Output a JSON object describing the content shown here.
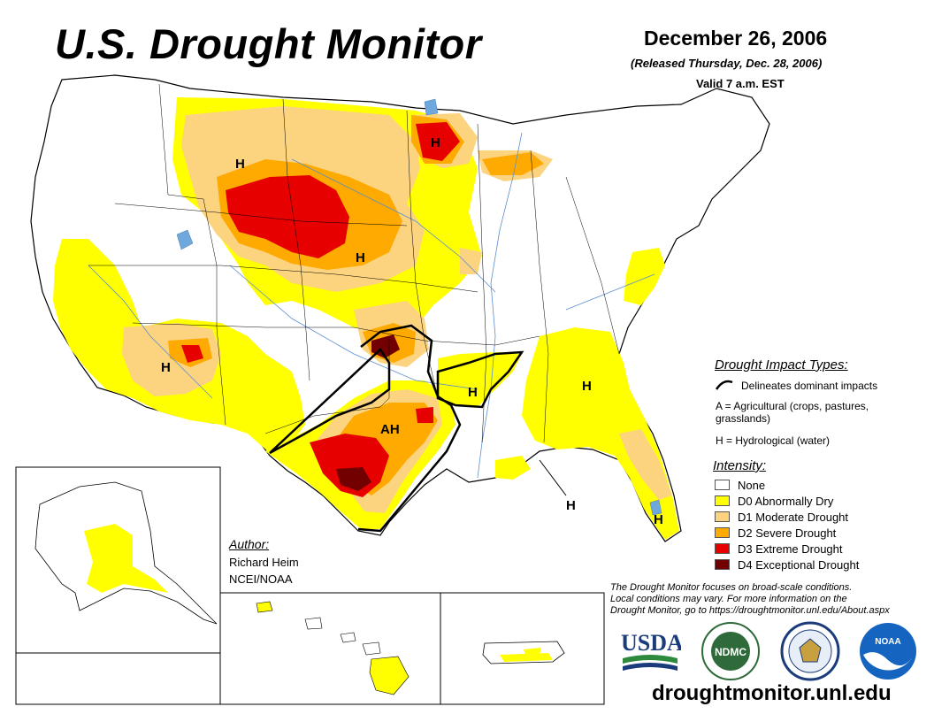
{
  "header": {
    "title": "U.S. Drought Monitor",
    "date": "December 26, 2006",
    "released": "(Released Thursday, Dec. 28, 2006)",
    "valid": "Valid 7 a.m. EST"
  },
  "map": {
    "impact_labels": [
      "H",
      "H",
      "H",
      "H",
      "AH",
      "H",
      "H",
      "H",
      "H"
    ]
  },
  "impact_legend": {
    "heading": "Drought Impact Types:",
    "delineates": "Delineates dominant impacts",
    "agricultural_line1": "A = Agricultural (crops, pastures,",
    "agricultural_line2": "grasslands)",
    "hydrological": "H = Hydrological (water)"
  },
  "intensity_legend": {
    "heading": "Intensity:",
    "items": [
      {
        "label": "None",
        "color": "#ffffff"
      },
      {
        "label": "D0 Abnormally Dry",
        "color": "#ffff00"
      },
      {
        "label": "D1 Moderate Drought",
        "color": "#fcd37f"
      },
      {
        "label": "D2 Severe Drought",
        "color": "#ffaa00"
      },
      {
        "label": "D3 Extreme Drought",
        "color": "#e60000"
      },
      {
        "label": "D4 Exceptional Drought",
        "color": "#730000"
      }
    ]
  },
  "author": {
    "heading": "Author:",
    "name": "Richard Heim",
    "org": "NCEI/NOAA"
  },
  "footer": {
    "note_line1": "The Drought Monitor focuses on broad-scale conditions.",
    "note_line2": "Local conditions may vary. For more information on the",
    "note_line3": "Drought Monitor, go to https://droughtmonitor.unl.edu/About.aspx",
    "url": "droughtmonitor.unl.edu"
  },
  "logos": {
    "usda": "USDA",
    "ndmc": "NDMC",
    "noaa": "NOAA"
  },
  "colors": {
    "d0": "#ffff00",
    "d1": "#fcd37f",
    "d2": "#ffaa00",
    "d3": "#e60000",
    "d4": "#730000",
    "water": "#6fa8dc",
    "usda_blue": "#1a3c7c",
    "usda_green": "#2e8b3e",
    "ndmc_green": "#2f6b3a",
    "noaa_blue": "#1565c0"
  }
}
